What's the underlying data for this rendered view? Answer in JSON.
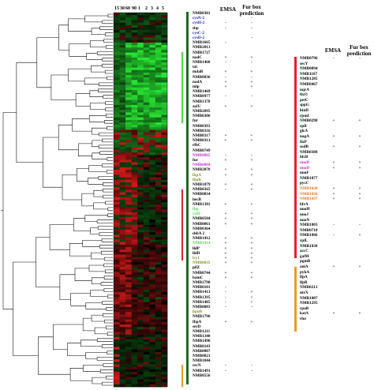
{
  "headers": {
    "emsa_left": "EMSA",
    "furbox_left": "Fur box\nprediction",
    "emsa_right": "EMSA",
    "furbox_right": "Fur box\nprediction"
  },
  "column_labels": [
    "15",
    "30",
    "60",
    "90",
    "1",
    "2",
    "3",
    "4",
    "5"
  ],
  "colors": {
    "red": "#e8201e",
    "green": "#1d6b24",
    "orange": "#f29b1c",
    "green_bright": "#4fd64a",
    "heat_red": "#ff2a2a",
    "heat_green": "#35e23a",
    "blue": "#1a22a8",
    "magenta": "#c42ad0",
    "orange_text": "#e97418",
    "olive": "#8a8d2a"
  },
  "left_genes": [
    {
      "name": "NMB0381",
      "color": "black",
      "emsa": "",
      "fur": ""
    },
    {
      "name": "cysN-2",
      "color": "blue",
      "emsa": "",
      "fur": "-"
    },
    {
      "name": "cysH-2",
      "color": "blue",
      "emsa": "-",
      "fur": "-"
    },
    {
      "name": "sbp",
      "color": "black",
      "emsa": "-",
      "fur": "-"
    },
    {
      "name": "cysC-2",
      "color": "blue",
      "emsa": "",
      "fur": ""
    },
    {
      "name": "cysD-2",
      "color": "blue",
      "emsa": "",
      "fur": "-"
    },
    {
      "name": "NMB1665",
      "color": "black",
      "emsa": "-",
      "fur": ""
    },
    {
      "name": "NMB2013",
      "color": "black",
      "emsa": "",
      "fur": ""
    },
    {
      "name": "NMB1727",
      "color": "black",
      "emsa": "",
      "fur": ""
    },
    {
      "name": "nadC",
      "color": "black",
      "emsa": "+",
      "fur": "+"
    },
    {
      "name": "NMB1468",
      "color": "black",
      "emsa": "-",
      "fur": "-"
    },
    {
      "name": "tal",
      "color": "black",
      "emsa": "",
      "fur": ""
    },
    {
      "name": "mdaB",
      "color": "black",
      "emsa": "+",
      "fur": "+"
    },
    {
      "name": "NMB0836",
      "color": "black",
      "emsa": "-",
      "fur": "-"
    },
    {
      "name": "nadA",
      "color": "black",
      "emsa": "+",
      "fur": "+"
    },
    {
      "name": "mlp",
      "color": "black",
      "emsa": "+",
      "fur": "+"
    },
    {
      "name": "NMB1469",
      "color": "black",
      "emsa": "",
      "fur": ""
    },
    {
      "name": "NMB0977",
      "color": "black",
      "emsa": "-",
      "fur": "-"
    },
    {
      "name": "NMB1378",
      "color": "black",
      "emsa": "",
      "fur": ""
    },
    {
      "name": "aziU",
      "color": "black",
      "emsa": "+",
      "fur": "+"
    },
    {
      "name": "NMB2095",
      "color": "black",
      "emsa": "",
      "fur": ""
    },
    {
      "name": "NMB0306",
      "color": "black",
      "emsa": "",
      "fur": ""
    },
    {
      "name": "fur",
      "color": "black",
      "emsa": "",
      "fur": ""
    },
    {
      "name": "NMB0393",
      "color": "black",
      "emsa": "",
      "fur": ""
    },
    {
      "name": "NMB0316",
      "color": "black",
      "emsa": "",
      "fur": ""
    },
    {
      "name": "NMB0317",
      "color": "black",
      "emsa": "+",
      "fur": "+"
    },
    {
      "name": "NMB0313",
      "color": "black",
      "emsa": "+",
      "fur": "+"
    },
    {
      "name": "rfbC",
      "color": "black",
      "emsa": "",
      "fur": ""
    },
    {
      "name": "NMB0749",
      "color": "black",
      "emsa": "",
      "fur": ""
    },
    {
      "name": "NMB0865",
      "color": "magenta",
      "emsa": "-",
      "fur": "-"
    },
    {
      "name": "fur",
      "color": "black",
      "emsa": "+",
      "fur": "+"
    },
    {
      "name": "NMB0864",
      "color": "magenta",
      "emsa": "",
      "fur": ""
    },
    {
      "name": "NMB2078",
      "color": "black",
      "emsa": "+",
      "fur": "+"
    },
    {
      "name": "lbpA",
      "color": "olive",
      "emsa": "+",
      "fur": "+"
    },
    {
      "name": "lbpB",
      "color": "olive",
      "emsa": "",
      "fur": ""
    },
    {
      "name": "NMB1879",
      "color": "black",
      "emsa": "+",
      "fur": "+"
    },
    {
      "name": "NMB0365",
      "color": "black",
      "emsa": "-",
      "fur": "+"
    },
    {
      "name": "NMB0034",
      "color": "black",
      "emsa": "",
      "fur": ""
    },
    {
      "name": "hecB",
      "color": "black",
      "emsa": "",
      "fur": ""
    },
    {
      "name": "NMB1381",
      "color": "black",
      "emsa": "+",
      "fur": "+"
    },
    {
      "name": "fbp",
      "color": "green",
      "emsa": "",
      "fur": ""
    },
    {
      "name": "cstD",
      "color": "green",
      "emsa": "+",
      "fur": "+"
    },
    {
      "name": "NMB0584",
      "color": "black",
      "emsa": "+",
      "fur": "+"
    },
    {
      "name": "NMB0061",
      "color": "black",
      "emsa": "+",
      "fur": "+"
    },
    {
      "name": "NMB0364",
      "color": "black",
      "emsa": "",
      "fur": ""
    },
    {
      "name": "dsbA 2",
      "color": "black",
      "emsa": "",
      "fur": ""
    },
    {
      "name": "NMB1412",
      "color": "black",
      "emsa": "+",
      "fur": "+"
    },
    {
      "name": "NMB1414",
      "color": "green",
      "emsa": "+",
      "fur": "+"
    },
    {
      "name": "lldP",
      "color": "black",
      "emsa": "+",
      "fur": "+"
    },
    {
      "name": "lldD",
      "color": "black",
      "emsa": "+",
      "fur": "+"
    },
    {
      "name": "lcy1",
      "color": "olive",
      "emsa": "+",
      "fur": "+"
    },
    {
      "name": "NMB0035",
      "color": "olive",
      "emsa": "+",
      "fur": "+"
    },
    {
      "name": "pilZ",
      "color": "black",
      "emsa": "",
      "fur": ""
    },
    {
      "name": "NMB0744",
      "color": "black",
      "emsa": "+",
      "fur": "+"
    },
    {
      "name": "bamC",
      "color": "black",
      "emsa": "+",
      "fur": "+"
    },
    {
      "name": "NMB1790",
      "color": "black",
      "emsa": "",
      "fur": ""
    },
    {
      "name": "NMB0181",
      "color": "black",
      "emsa": "-",
      "fur": ""
    },
    {
      "name": "NMB1413",
      "color": "black",
      "emsa": "-",
      "fur": "+"
    },
    {
      "name": "NMB1395",
      "color": "black",
      "emsa": "-",
      "fur": "+"
    },
    {
      "name": "NMB1485",
      "color": "black",
      "emsa": "-",
      "fur": "+"
    },
    {
      "name": "NMB0083",
      "color": "black",
      "emsa": "-",
      "fur": "-"
    },
    {
      "name": "hpuB",
      "color": "olive",
      "emsa": "",
      "fur": ""
    },
    {
      "name": "NMB1796",
      "color": "black",
      "emsa": "",
      "fur": ""
    },
    {
      "name": "fbpA",
      "color": "black",
      "emsa": "+",
      "fur": "+"
    },
    {
      "name": "serD",
      "color": "black",
      "emsa": "",
      "fur": ""
    },
    {
      "name": "NMB1211",
      "color": "black",
      "emsa": "",
      "fur": ""
    },
    {
      "name": "NMB1340",
      "color": "black",
      "emsa": "",
      "fur": ""
    },
    {
      "name": "NMB1490",
      "color": "black",
      "emsa": "",
      "fur": ""
    },
    {
      "name": "NMB0143",
      "color": "black",
      "emsa": "",
      "fur": ""
    },
    {
      "name": "NMB0807",
      "color": "black",
      "emsa": "",
      "fur": ""
    },
    {
      "name": "NMB0821",
      "color": "black",
      "emsa": "",
      "fur": ""
    },
    {
      "name": "NMB1844",
      "color": "black",
      "emsa": "",
      "fur": ""
    },
    {
      "name": "recN",
      "color": "black",
      "emsa": "-",
      "fur": "-"
    },
    {
      "name": "NMB1491",
      "color": "black",
      "emsa": "-",
      "fur": "-"
    },
    {
      "name": "NMB0556",
      "color": "black",
      "emsa": "",
      "fur": ""
    }
  ],
  "right_genes": [
    {
      "name": "NMB0796",
      "color": "black",
      "emsa": "-",
      "fur": "-"
    },
    {
      "name": "secY",
      "color": "black",
      "emsa": "",
      "fur": ""
    },
    {
      "name": "NMB0094",
      "color": "black",
      "emsa": "",
      "fur": ""
    },
    {
      "name": "NMB1187",
      "color": "black",
      "emsa": "",
      "fur": ""
    },
    {
      "name": "NMB1285",
      "color": "black",
      "emsa": "",
      "fur": ""
    },
    {
      "name": "NMB0467",
      "color": "black",
      "emsa": "",
      "fur": ""
    },
    {
      "name": "nqrA",
      "color": "black",
      "emsa": "",
      "fur": ""
    },
    {
      "name": "fixO",
      "color": "black",
      "emsa": "",
      "fur": ""
    },
    {
      "name": "petC",
      "color": "black",
      "emsa": "",
      "fur": ""
    },
    {
      "name": "sppG",
      "color": "black",
      "emsa": "",
      "fur": ""
    },
    {
      "name": "kinD",
      "color": "black",
      "emsa": "",
      "fur": ""
    },
    {
      "name": "rpmI",
      "color": "black",
      "emsa": "",
      "fur": ""
    },
    {
      "name": "NMB0298",
      "color": "black",
      "emsa": "+",
      "fur": "+"
    },
    {
      "name": "rplI",
      "color": "black",
      "emsa": "",
      "fur": ""
    },
    {
      "name": "glcA",
      "color": "black",
      "emsa": "",
      "fur": ""
    },
    {
      "name": "nagA",
      "color": "black",
      "emsa": "+",
      "fur": "+"
    },
    {
      "name": "fixP",
      "color": "black",
      "emsa": "",
      "fur": ""
    },
    {
      "name": "sodB",
      "color": "black",
      "emsa": "+",
      "fur": "+"
    },
    {
      "name": "NMB0388",
      "color": "black",
      "emsa": "",
      "fur": ""
    },
    {
      "name": "hfcB",
      "color": "black",
      "emsa": "",
      "fur": ""
    },
    {
      "name": "nuoB",
      "color": "magenta",
      "emsa": "+",
      "fur": "+"
    },
    {
      "name": "nuoD",
      "color": "magenta",
      "emsa": "+",
      "fur": "+"
    },
    {
      "name": "nuoF",
      "color": "black",
      "emsa": "",
      "fur": ""
    },
    {
      "name": "NMB1077",
      "color": "black",
      "emsa": "",
      "fur": ""
    },
    {
      "name": "pycC",
      "color": "black",
      "emsa": "",
      "fur": ""
    },
    {
      "name": "NMB1438",
      "color": "orange",
      "emsa": "+",
      "fur": "+"
    },
    {
      "name": "NMB1436",
      "color": "orange",
      "emsa": "+",
      "fur": "+"
    },
    {
      "name": "NMB1437",
      "color": "orange",
      "emsa": "+",
      "fur": "+"
    },
    {
      "name": "bfrA",
      "color": "black",
      "emsa": "",
      "fur": ""
    },
    {
      "name": "nuoH",
      "color": "black",
      "emsa": "",
      "fur": ""
    },
    {
      "name": "nuoJ",
      "color": "black",
      "emsa": "",
      "fur": ""
    },
    {
      "name": "nuoN",
      "color": "black",
      "emsa": "",
      "fur": ""
    },
    {
      "name": "NMB1803",
      "color": "black",
      "emsa": "-",
      "fur": "-"
    },
    {
      "name": "NMB0710",
      "color": "black",
      "emsa": "",
      "fur": ""
    },
    {
      "name": "NMB1866",
      "color": "black",
      "emsa": "-",
      "fur": "+"
    },
    {
      "name": "rplL",
      "color": "black",
      "emsa": "",
      "fur": ""
    },
    {
      "name": "NMB1830",
      "color": "black",
      "emsa": "",
      "fur": ""
    },
    {
      "name": "accC",
      "color": "black",
      "emsa": "",
      "fur": ""
    },
    {
      "name": "galM",
      "color": "black",
      "emsa": "",
      "fur": ""
    },
    {
      "name": "pgmB",
      "color": "black",
      "emsa": "",
      "fur": ""
    },
    {
      "name": "aniA",
      "color": "black",
      "emsa": "+",
      "fur": "+"
    },
    {
      "name": "pykA",
      "color": "black",
      "emsa": "",
      "fur": ""
    },
    {
      "name": "lfpA",
      "color": "black",
      "emsa": "",
      "fur": ""
    },
    {
      "name": "lfpB",
      "color": "black",
      "emsa": "",
      "fur": ""
    },
    {
      "name": "NMB0213",
      "color": "black",
      "emsa": "",
      "fur": ""
    },
    {
      "name": "ntrX",
      "color": "black",
      "emsa": "",
      "fur": ""
    },
    {
      "name": "NMB1087",
      "color": "black",
      "emsa": "",
      "fur": ""
    },
    {
      "name": "NMB1295",
      "color": "black",
      "emsa": "",
      "fur": ""
    },
    {
      "name": "rpoB",
      "color": "black",
      "emsa": "",
      "fur": ""
    },
    {
      "name": "katA",
      "color": "black",
      "emsa": "+",
      "fur": "+"
    },
    {
      "name": "rho",
      "color": "black",
      "emsa": "",
      "fur": ""
    }
  ]
}
